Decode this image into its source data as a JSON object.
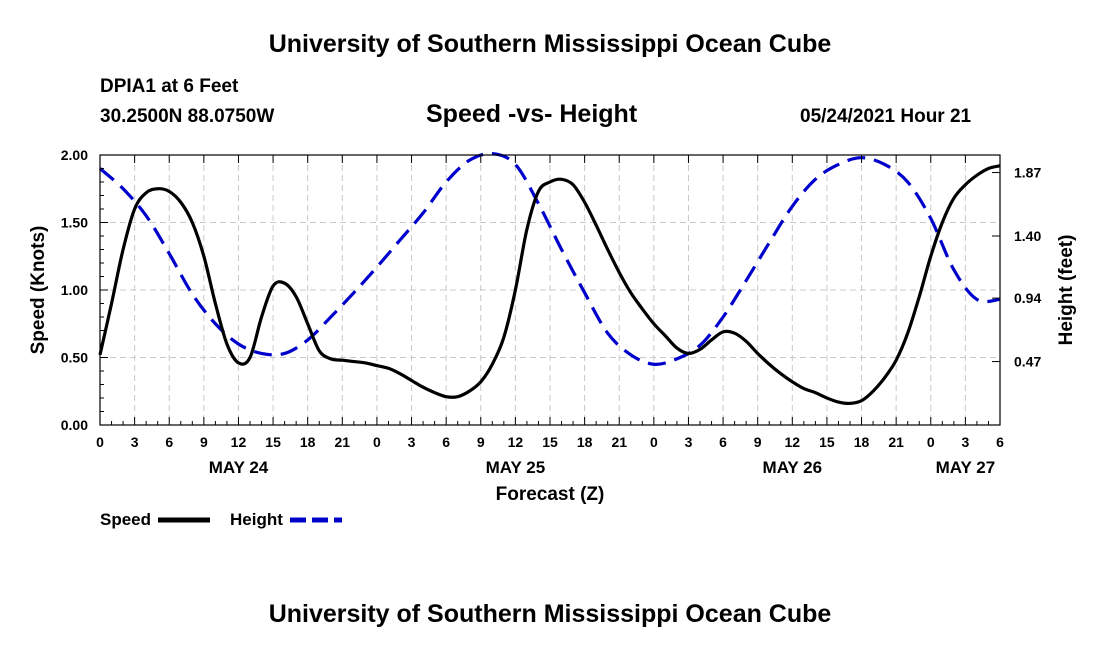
{
  "page": {
    "title_top": "University of Southern Mississippi Ocean Cube",
    "title_bottom": "University of Southern Mississippi Ocean Cube",
    "station": "DPIA1 at 6 Feet",
    "coords": "30.2500N  88.0750W",
    "datetime": "05/24/2021 Hour 21"
  },
  "chart_data": {
    "type": "line",
    "title": "Speed -vs- Height",
    "xlabel": "Forecast (Z)",
    "ylabel": "Speed (Knots)",
    "ylabel_right": "Height (feet)",
    "x_range_hours": [
      0,
      78
    ],
    "ylim": [
      0,
      2
    ],
    "ylim_right": [
      0.0,
      2.0
    ],
    "grid": true,
    "legend_position": "bottom-left",
    "x_tick_labels": [
      "0",
      "3",
      "6",
      "9",
      "12",
      "15",
      "18",
      "21",
      "0",
      "3",
      "6",
      "9",
      "12",
      "15",
      "18",
      "21",
      "0",
      "3",
      "6",
      "9",
      "12",
      "15",
      "18",
      "21",
      "0",
      "3",
      "6"
    ],
    "date_labels": [
      {
        "label": "MAY 24",
        "hour": 12
      },
      {
        "label": "MAY 25",
        "hour": 36
      },
      {
        "label": "MAY 26",
        "hour": 60
      },
      {
        "label": "MAY 27",
        "hour": 75
      }
    ],
    "y_ticks": [
      {
        "value": 0.0,
        "label": "0.00"
      },
      {
        "value": 0.5,
        "label": "0.50"
      },
      {
        "value": 1.0,
        "label": "1.00"
      },
      {
        "value": 1.5,
        "label": "1.50"
      },
      {
        "value": 2.0,
        "label": "2.00"
      }
    ],
    "y_ticks_right": [
      {
        "value": 0.47,
        "label": "0.47"
      },
      {
        "value": 0.94,
        "label": "0.94"
      },
      {
        "value": 1.4,
        "label": "1.40"
      },
      {
        "value": 1.87,
        "label": "1.87"
      }
    ],
    "series": [
      {
        "name": "Speed",
        "color": "#000000",
        "style": "solid",
        "axis": "left",
        "x": [
          0,
          1,
          2,
          3,
          4,
          5,
          6,
          7,
          8,
          9,
          10,
          11,
          12,
          13,
          14,
          15,
          16,
          17,
          18,
          19,
          20,
          21,
          22,
          23,
          24,
          25,
          26,
          27,
          28,
          29,
          30,
          31,
          32,
          33,
          34,
          35,
          36,
          37,
          38,
          39,
          40,
          41,
          42,
          43,
          44,
          45,
          46,
          47,
          48,
          49,
          50,
          51,
          52,
          53,
          54,
          55,
          56,
          57,
          58,
          59,
          60,
          61,
          62,
          63,
          64,
          65,
          66,
          67,
          68,
          69,
          70,
          71,
          72,
          73,
          74,
          75,
          76,
          77,
          78
        ],
        "values": [
          0.52,
          0.9,
          1.3,
          1.6,
          1.72,
          1.75,
          1.73,
          1.65,
          1.5,
          1.25,
          0.9,
          0.6,
          0.46,
          0.5,
          0.8,
          1.03,
          1.05,
          0.95,
          0.75,
          0.55,
          0.49,
          0.48,
          0.47,
          0.46,
          0.44,
          0.42,
          0.38,
          0.33,
          0.28,
          0.24,
          0.21,
          0.21,
          0.25,
          0.32,
          0.45,
          0.65,
          1.0,
          1.45,
          1.73,
          1.8,
          1.82,
          1.78,
          1.65,
          1.48,
          1.3,
          1.13,
          0.98,
          0.86,
          0.75,
          0.66,
          0.57,
          0.53,
          0.56,
          0.63,
          0.69,
          0.68,
          0.62,
          0.53,
          0.45,
          0.38,
          0.32,
          0.27,
          0.24,
          0.2,
          0.17,
          0.16,
          0.18,
          0.25,
          0.35,
          0.48,
          0.68,
          0.95,
          1.25,
          1.5,
          1.68,
          1.78,
          1.85,
          1.9,
          1.92
        ]
      },
      {
        "name": "Height",
        "color": "#0000cc",
        "style": "dashed",
        "axis": "right",
        "x": [
          0,
          2,
          4,
          6,
          8,
          10,
          12,
          14,
          16,
          18,
          20,
          22,
          24,
          26,
          28,
          30,
          32,
          34,
          36,
          38,
          40,
          42,
          44,
          46,
          48,
          50,
          52,
          54,
          56,
          58,
          60,
          62,
          64,
          66,
          68,
          70,
          72,
          74,
          76,
          78
        ],
        "values": [
          1.9,
          1.75,
          1.55,
          1.27,
          0.97,
          0.75,
          0.6,
          0.53,
          0.53,
          0.63,
          0.8,
          0.98,
          1.17,
          1.37,
          1.57,
          1.8,
          1.96,
          2.01,
          1.93,
          1.64,
          1.3,
          0.98,
          0.68,
          0.52,
          0.45,
          0.49,
          0.59,
          0.8,
          1.07,
          1.35,
          1.62,
          1.82,
          1.93,
          1.98,
          1.93,
          1.8,
          1.53,
          1.15,
          0.93,
          0.93
        ]
      }
    ],
    "legend": [
      {
        "label": "Speed",
        "color": "#000000",
        "style": "solid"
      },
      {
        "label": "Height",
        "color": "#0000cc",
        "style": "dashed"
      }
    ]
  }
}
